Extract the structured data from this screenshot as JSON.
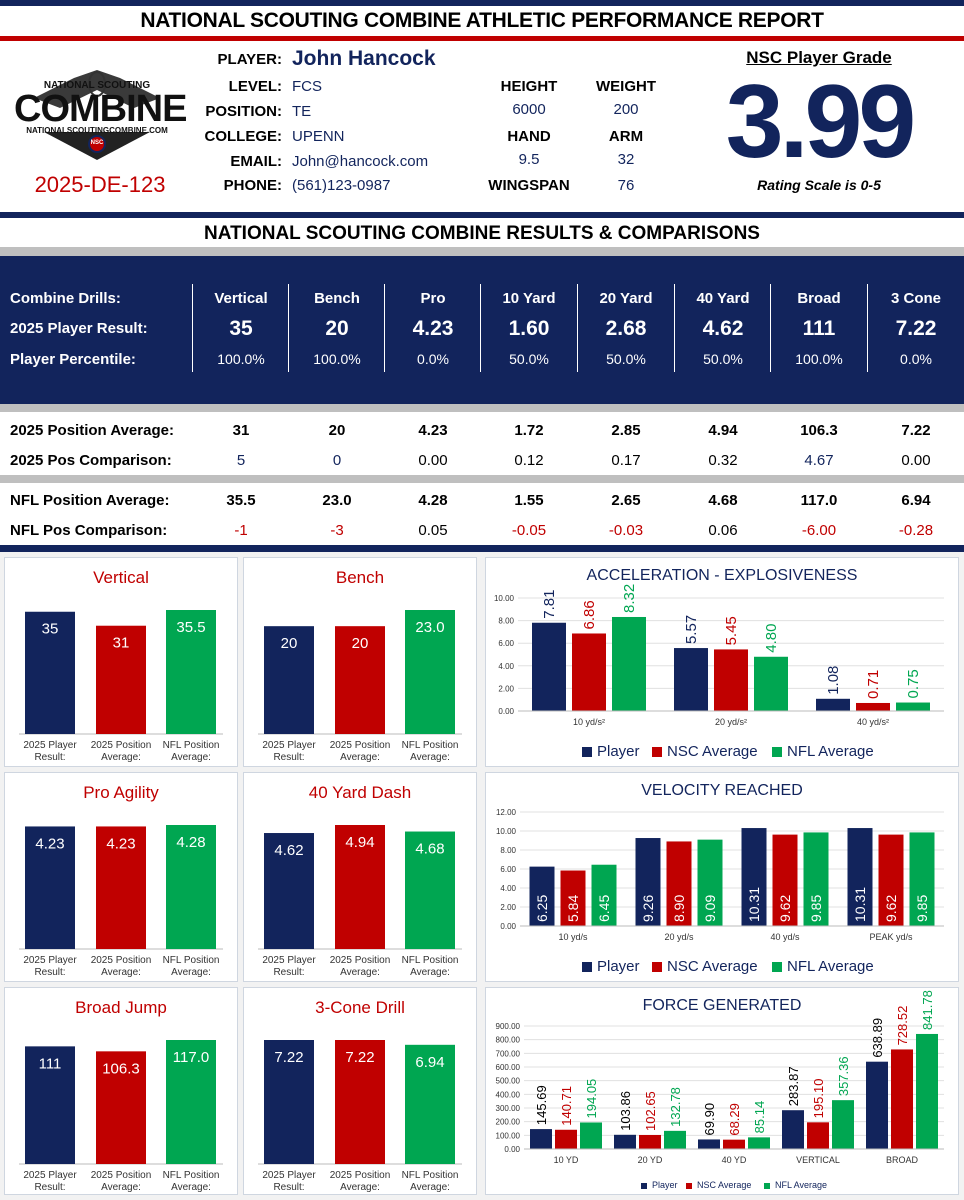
{
  "header": {
    "title": "NATIONAL SCOUTING COMBINE ATHLETIC PERFORMANCE REPORT",
    "logo": {
      "line1": "NATIONAL SCOUTING",
      "line2": "COMBINE",
      "line3": "NATIONALSCOUTINGCOMBINE.COM",
      "badge": "NSC"
    },
    "report_id": "2025-DE-123"
  },
  "player": {
    "labels": {
      "player": "PLAYER:",
      "level": "LEVEL:",
      "position": "POSITION:",
      "college": "COLLEGE:",
      "email": "EMAIL:",
      "phone": "PHONE:"
    },
    "name": "John Hancock",
    "level": "FCS",
    "position": "TE",
    "college": "UPENN",
    "email": "John@hancock.com",
    "phone": "(561)123-0987"
  },
  "measurements": {
    "height_label": "HEIGHT",
    "height": "6000",
    "weight_label": "WEIGHT",
    "weight": "200",
    "hand_label": "HAND",
    "hand": "9.5",
    "arm_label": "ARM",
    "arm": "32",
    "wingspan_label": "WINGSPAN",
    "wingspan": "76"
  },
  "grade": {
    "label": "NSC Player Grade",
    "value": "3.99",
    "scale": "Rating Scale is 0-5"
  },
  "results": {
    "section_title": "NATIONAL SCOUTING COMBINE RESULTS & COMPARISONS",
    "row_labels": {
      "drills": "Combine Drills:",
      "result": "2025 Player Result:",
      "percentile": "Player Percentile:"
    },
    "drills": [
      {
        "name": "Vertical",
        "result": "35",
        "percentile": "100.0%"
      },
      {
        "name": "Bench",
        "result": "20",
        "percentile": "100.0%"
      },
      {
        "name": "Pro",
        "result": "4.23",
        "percentile": "0.0%"
      },
      {
        "name": "10 Yard",
        "result": "1.60",
        "percentile": "50.0%"
      },
      {
        "name": "20 Yard",
        "result": "2.68",
        "percentile": "50.0%"
      },
      {
        "name": "40 Yard",
        "result": "4.62",
        "percentile": "50.0%"
      },
      {
        "name": "Broad",
        "result": "111",
        "percentile": "100.0%"
      },
      {
        "name": "3 Cone",
        "result": "7.22",
        "percentile": "0.0%"
      }
    ]
  },
  "comparisons": {
    "pos_avg_label": "2025 Position Average:",
    "pos_cmp_label": "2025 Pos Comparison:",
    "nfl_avg_label": "NFL Position Average:",
    "nfl_cmp_label": "NFL Pos Comparison:",
    "pos_avg": [
      "31",
      "20",
      "4.23",
      "1.72",
      "2.85",
      "4.94",
      "106.3",
      "7.22"
    ],
    "pos_cmp": [
      "5",
      "0",
      "0.00",
      "0.12",
      "0.17",
      "0.32",
      "4.67",
      "0.00"
    ],
    "pos_cmp_color": [
      "blue",
      "blue",
      "black",
      "black",
      "black",
      "black",
      "blue",
      "black"
    ],
    "nfl_avg": [
      "35.5",
      "23.0",
      "4.28",
      "1.55",
      "2.65",
      "4.68",
      "117.0",
      "6.94"
    ],
    "nfl_cmp": [
      "-1",
      "-3",
      "0.05",
      "-0.05",
      "-0.03",
      "0.06",
      "-6.00",
      "-0.28"
    ],
    "nfl_cmp_color": [
      "red",
      "red",
      "black",
      "red",
      "red",
      "black",
      "red",
      "red"
    ]
  },
  "colors": {
    "navy": "#12245c",
    "red": "#c00000",
    "green": "#00a651",
    "panel_bg": "#f2f2f2"
  },
  "chart_data": [
    {
      "type": "bar",
      "title": "Vertical",
      "categories": [
        "2025 Player Result:",
        "2025 Position Average:",
        "NFL Position Average:"
      ],
      "values": [
        35,
        31,
        35.5
      ],
      "labels": [
        "35",
        "31",
        "35.5"
      ]
    },
    {
      "type": "bar",
      "title": "Bench",
      "categories": [
        "2025 Player Result:",
        "2025 Position Average:",
        "NFL Position Average:"
      ],
      "values": [
        20,
        20,
        23.0
      ],
      "labels": [
        "20",
        "20",
        "23.0"
      ]
    },
    {
      "type": "bar",
      "title": "Pro Agility",
      "categories": [
        "2025 Player Result:",
        "2025 Position Average:",
        "NFL Position Average:"
      ],
      "values": [
        4.23,
        4.23,
        4.28
      ],
      "labels": [
        "4.23",
        "4.23",
        "4.28"
      ]
    },
    {
      "type": "bar",
      "title": "40 Yard Dash",
      "categories": [
        "2025 Player Result:",
        "2025 Position Average:",
        "NFL Position Average:"
      ],
      "values": [
        4.62,
        4.94,
        4.68
      ],
      "labels": [
        "4.62",
        "4.94",
        "4.68"
      ]
    },
    {
      "type": "bar",
      "title": "Broad Jump",
      "categories": [
        "2025 Player Result:",
        "2025 Position Average:",
        "NFL Position Average:"
      ],
      "values": [
        111,
        106.3,
        117.0
      ],
      "labels": [
        "111",
        "106.3",
        "117.0"
      ]
    },
    {
      "type": "bar",
      "title": "3-Cone Drill",
      "categories": [
        "2025 Player Result:",
        "2025 Position Average:",
        "NFL Position Average:"
      ],
      "values": [
        7.22,
        7.22,
        6.94
      ],
      "labels": [
        "7.22",
        "7.22",
        "6.94"
      ]
    },
    {
      "type": "bar",
      "title": "ACCELERATION - EXPLOSIVENESS",
      "categories": [
        "10 yd/s²",
        "20 yd/s²",
        "40 yd/s²"
      ],
      "series": [
        {
          "name": "Player",
          "values": [
            7.81,
            5.57,
            1.08
          ]
        },
        {
          "name": "NSC Average",
          "values": [
            6.86,
            5.45,
            0.71
          ]
        },
        {
          "name": "NFL Average",
          "values": [
            8.32,
            4.8,
            0.75
          ]
        }
      ],
      "ylim": [
        0,
        10
      ],
      "yticks": [
        "0.00",
        "2.00",
        "4.00",
        "6.00",
        "8.00",
        "10.00"
      ],
      "decimals": 2,
      "legend": "bottom"
    },
    {
      "type": "bar",
      "title": "VELOCITY REACHED",
      "categories": [
        "10 yd/s",
        "20 yd/s",
        "40 yd/s",
        "PEAK yd/s"
      ],
      "series": [
        {
          "name": "Player",
          "values": [
            6.25,
            9.26,
            10.31,
            10.31
          ]
        },
        {
          "name": "NSC Average",
          "values": [
            5.84,
            8.9,
            9.62,
            9.62
          ]
        },
        {
          "name": "NFL Average",
          "values": [
            6.45,
            9.09,
            9.85,
            9.85
          ]
        }
      ],
      "ylim": [
        0,
        12
      ],
      "yticks": [
        "0.00",
        "2.00",
        "4.00",
        "6.00",
        "8.00",
        "10.00",
        "12.00"
      ],
      "decimals": 2,
      "legend": "bottom"
    },
    {
      "type": "bar",
      "title": "FORCE GENERATED",
      "categories": [
        "10 YD",
        "20 YD",
        "40 YD",
        "VERTICAL",
        "BROAD"
      ],
      "series": [
        {
          "name": "Player",
          "values": [
            145.69,
            103.86,
            69.9,
            283.87,
            638.89
          ]
        },
        {
          "name": "NSC Average",
          "values": [
            140.71,
            102.65,
            68.29,
            195.1,
            728.52
          ]
        },
        {
          "name": "NFL Average",
          "values": [
            194.05,
            132.78,
            85.14,
            357.36,
            841.78
          ]
        }
      ],
      "ylim": [
        0,
        900
      ],
      "yticks": [
        "0.00",
        "100.00",
        "200.00",
        "300.00",
        "400.00",
        "500.00",
        "600.00",
        "700.00",
        "800.00",
        "900.00"
      ],
      "decimals": 2,
      "legend": "bottom"
    }
  ]
}
